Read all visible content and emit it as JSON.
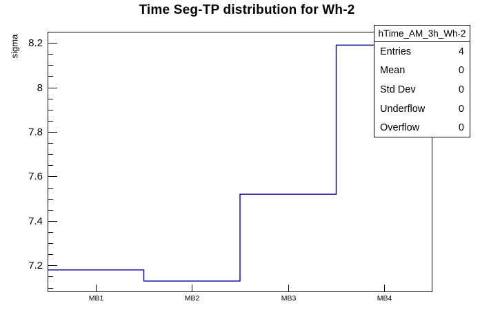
{
  "title": "Time Seg-TP distribution for Wh-2",
  "y_axis_label": "sigma",
  "stats_box": {
    "title": "hTime_AM_3h_Wh-2",
    "rows": [
      {
        "label": "Entries",
        "value": "4"
      },
      {
        "label": "Mean",
        "value": "0"
      },
      {
        "label": "Std Dev",
        "value": "0"
      },
      {
        "label": "Underflow",
        "value": "0"
      },
      {
        "label": "Overflow",
        "value": "0"
      }
    ]
  },
  "chart_data": {
    "type": "line",
    "style": "histogram-step",
    "title": "Time Seg-TP distribution for Wh-2",
    "categories": [
      "MB1",
      "MB2",
      "MB3",
      "MB4"
    ],
    "values": [
      7.18,
      7.13,
      7.52,
      8.19
    ],
    "xlabel": "",
    "ylabel": "sigma",
    "ylim": [
      7.08,
      8.25
    ],
    "y_major_ticks": [
      7.2,
      7.4,
      7.6,
      7.8,
      8,
      8.2
    ],
    "y_tick_labels": [
      "7.2",
      "7.4",
      "7.6",
      "7.8",
      "8",
      "8.2"
    ],
    "y_minor_tick_step": 0.05,
    "grid": false,
    "legend": false,
    "line_color": "#000099",
    "frame_color": "#000000",
    "background": "#ffffff"
  }
}
